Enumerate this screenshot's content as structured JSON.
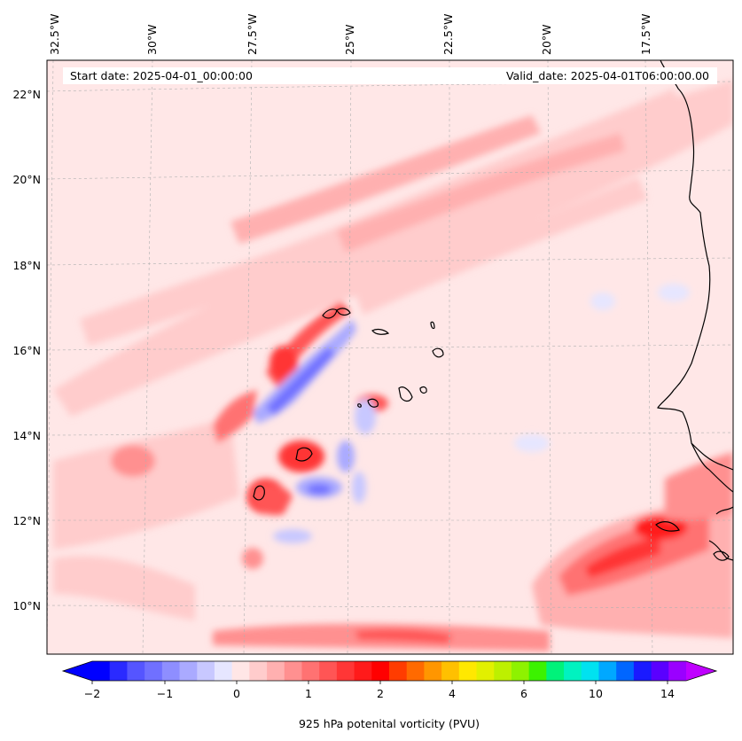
{
  "header": {
    "start_label": "Start date: 2025-04-01_00:00:00",
    "valid_label": "Valid_date: 2025-04-01T06:00:00.00"
  },
  "lon_labels": [
    "32.5°W",
    "30°W",
    "27.5°W",
    "25°W",
    "22.5°W",
    "20°W",
    "17.5°W"
  ],
  "lat_labels": [
    "22°N",
    "20°N",
    "18°N",
    "16°N",
    "14°N",
    "12°N",
    "10°N"
  ],
  "colorbar": {
    "title": "925 hPa potenital vorticity (PVU)",
    "tick_labels": [
      "−2",
      "−1",
      "0",
      "1",
      "2",
      "4",
      "6",
      "10",
      "14"
    ],
    "colors": [
      "#0000ff",
      "#2a2aff",
      "#5555ff",
      "#7070ff",
      "#8e8eff",
      "#aaaaff",
      "#c8c8ff",
      "#e6e6ff",
      "#ffe6e6",
      "#ffcccc",
      "#ffb0b0",
      "#ff9090",
      "#ff7272",
      "#ff5555",
      "#ff3636",
      "#ff1a1a",
      "#ff0000",
      "#ff3c00",
      "#ff6a00",
      "#ff9600",
      "#ffc000",
      "#ffe800",
      "#e2f000",
      "#bdf000",
      "#8ef200",
      "#3cf200",
      "#00f27a",
      "#00f2c0",
      "#00e2f0",
      "#00a8ff",
      "#0066ff",
      "#1a1aff",
      "#5a00ff",
      "#9a00ff"
    ],
    "under_color": "#0000ff",
    "over_color": "#bf00ff"
  },
  "map": {
    "background_color": "#ffe7e7",
    "land_outline_color": "#000000"
  }
}
